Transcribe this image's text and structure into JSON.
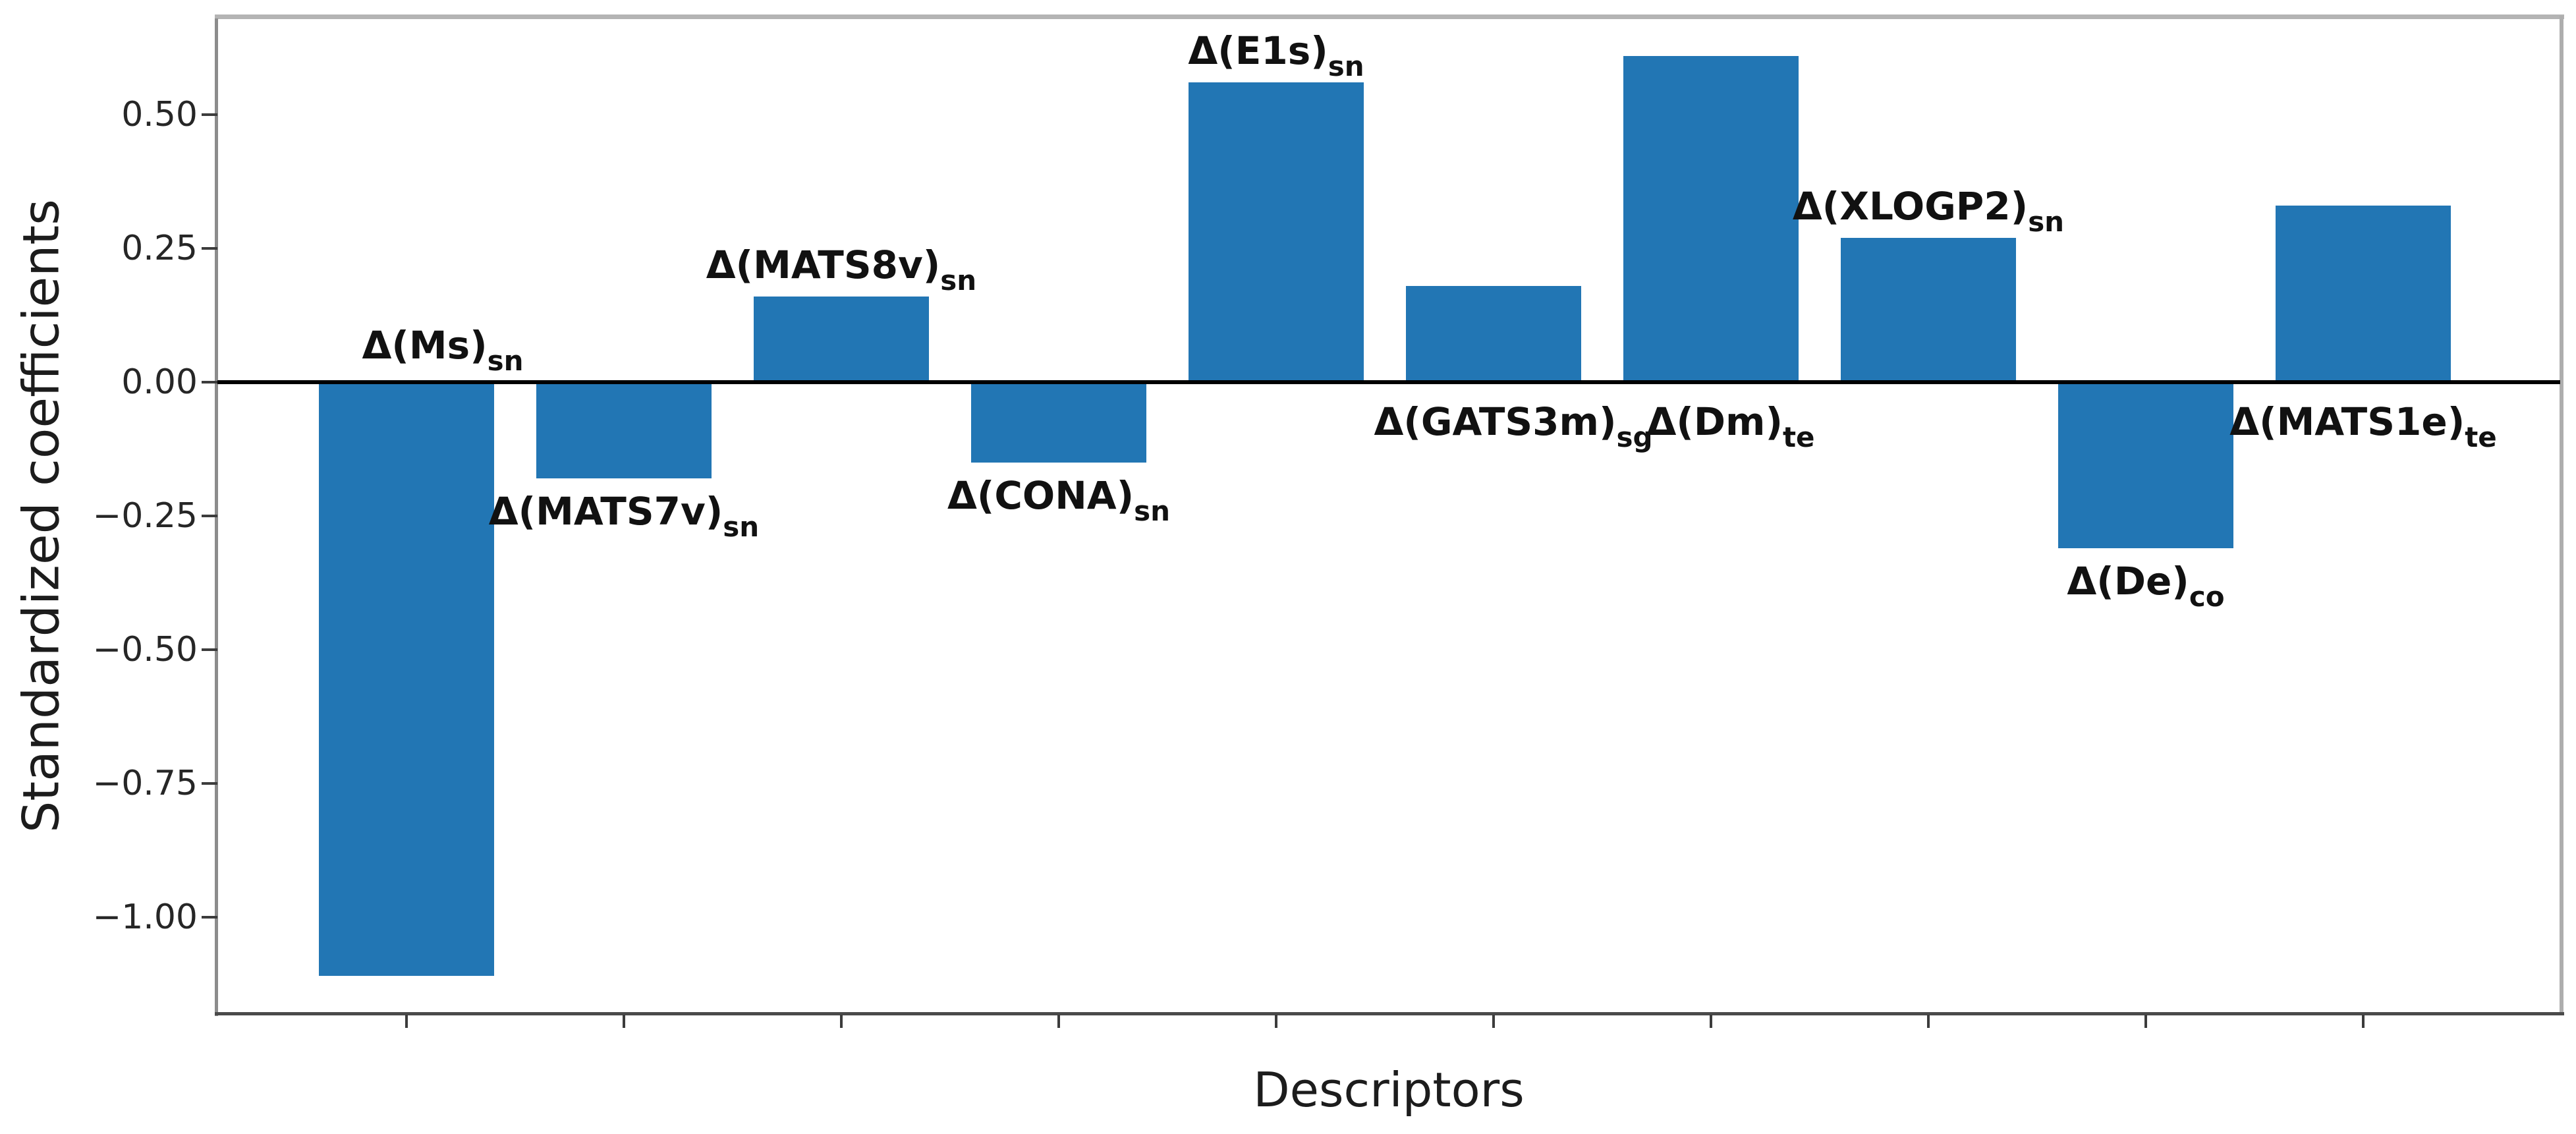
{
  "chart_data": {
    "type": "bar",
    "title": "",
    "xlabel": "Descriptors",
    "ylabel": "Standardized coefficients",
    "ylim": [
      -1.18,
      0.68
    ],
    "grid": false,
    "legend": "none",
    "bar_color": "#2276b4",
    "zero_line_color": "#000000",
    "yticks": [
      0.5,
      0.25,
      0.0,
      -0.25,
      -0.5,
      -0.75,
      -1.0
    ],
    "ytick_labels": [
      "0.50",
      "0.25",
      "0.00",
      "−0.25",
      "−0.50",
      "−0.75",
      "−1.00"
    ],
    "categories": [
      "Δ(Ms)sn",
      "Δ(MATS7v)sn",
      "Δ(MATS8v)sn",
      "Δ(CONA)sn",
      "Δ(E1s)sn",
      "Δ(GATS3m)sg",
      "Δ(Dm)te",
      "Δ(XLOGP2)sn",
      "Δ(De)co",
      "Δ(MATS1e)te"
    ],
    "values": [
      -1.11,
      -0.18,
      0.16,
      -0.15,
      0.56,
      0.18,
      0.61,
      0.27,
      -0.31,
      0.33
    ],
    "points": [
      {
        "label": "Δ(Ms)",
        "subscript": "sn",
        "value": -1.11,
        "label_pos": "above-axis",
        "label_dx": 55
      },
      {
        "label": "Δ(MATS7v)",
        "subscript": "sn",
        "value": -0.18,
        "label_pos": "below-bar",
        "label_dx": 0
      },
      {
        "label": "Δ(MATS8v)",
        "subscript": "sn",
        "value": 0.16,
        "label_pos": "above-bar",
        "label_dx": 0
      },
      {
        "label": "Δ(CONA)",
        "subscript": "sn",
        "value": -0.15,
        "label_pos": "below-bar",
        "label_dx": 0
      },
      {
        "label": "Δ(E1s)",
        "subscript": "sn",
        "value": 0.56,
        "label_pos": "above-bar",
        "label_dx": 0
      },
      {
        "label": "Δ(GATS3m)",
        "subscript": "sg",
        "value": 0.18,
        "label_pos": "below-axis",
        "label_dx": 30
      },
      {
        "label": "Δ(Dm)",
        "subscript": "te",
        "value": 0.61,
        "label_pos": "below-axis",
        "label_dx": 30
      },
      {
        "label": "Δ(XLOGP2)",
        "subscript": "sn",
        "value": 0.27,
        "label_pos": "above-bar",
        "label_dx": 0
      },
      {
        "label": "Δ(De)",
        "subscript": "co",
        "value": -0.31,
        "label_pos": "below-bar",
        "label_dx": 0
      },
      {
        "label": "Δ(MATS1e)",
        "subscript": "te",
        "value": 0.33,
        "label_pos": "below-axis",
        "label_dx": 0
      }
    ]
  }
}
